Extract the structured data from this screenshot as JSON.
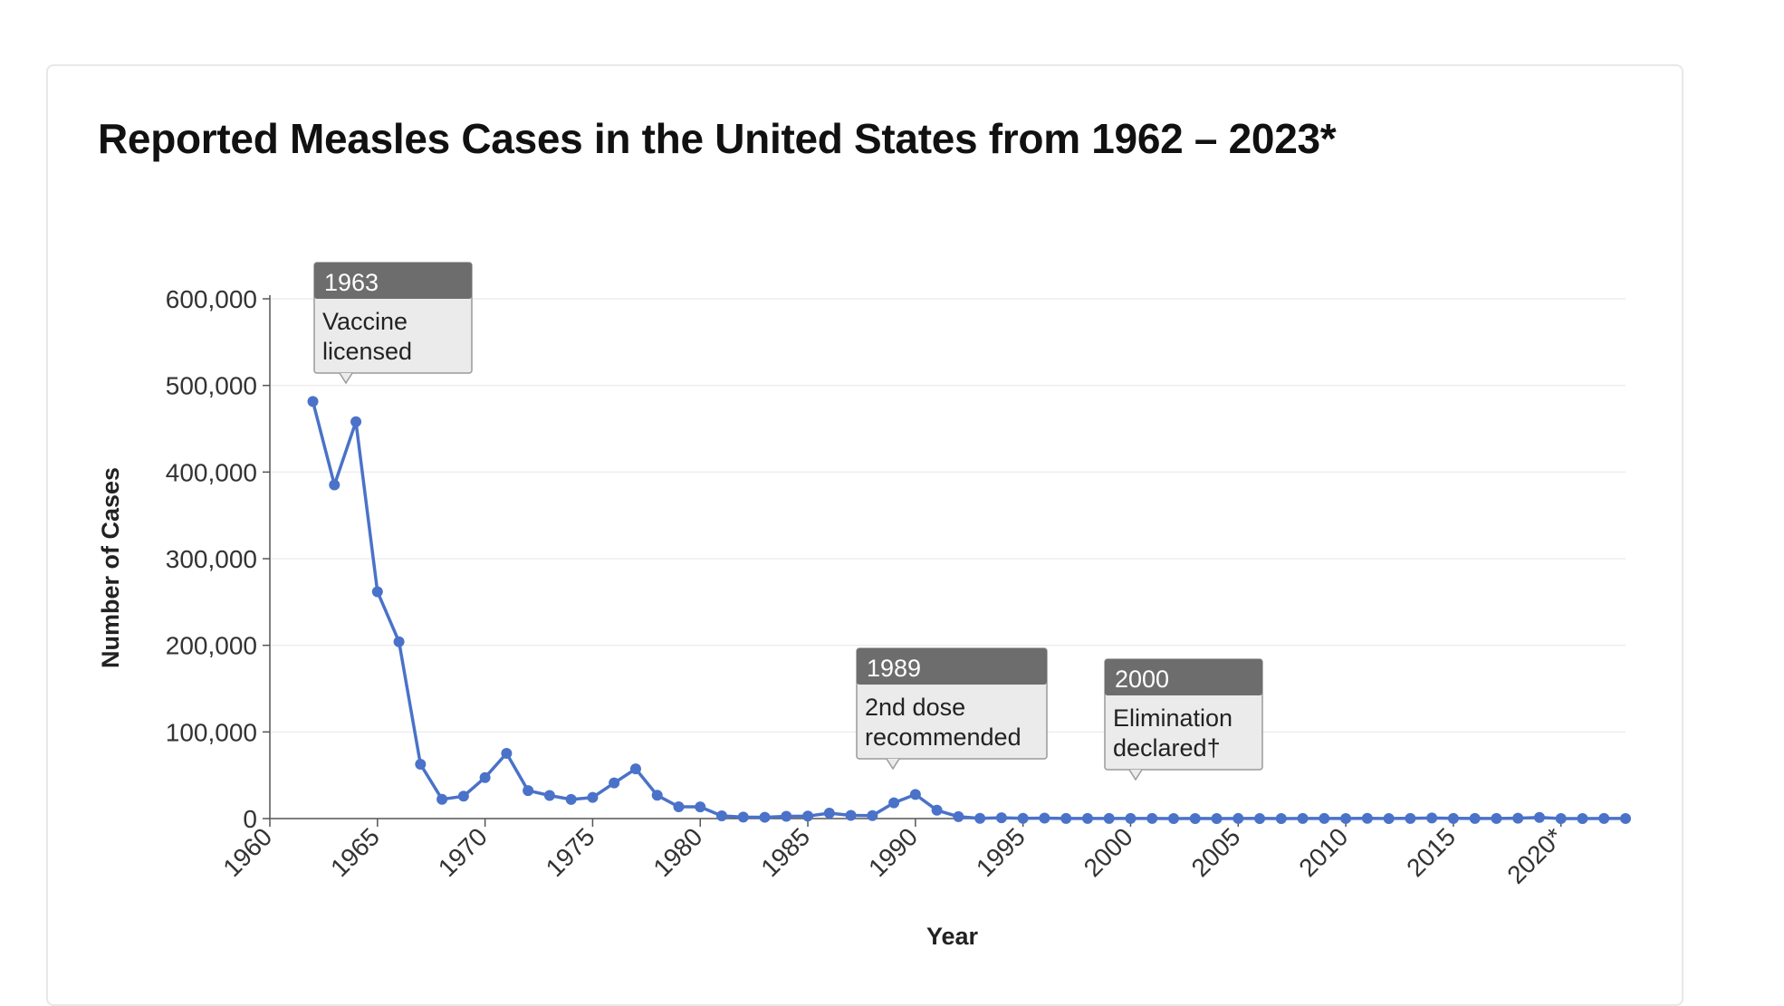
{
  "card": {
    "title": "Reported Measles Cases in the United States from 1962 – 2023*"
  },
  "colors": {
    "line": "#4a72c9",
    "point": "#4a72c9",
    "grid": "#eeeeee",
    "axis": "#555555",
    "annotation_header": "#6d6d6d",
    "annotation_body": "#ebebeb"
  },
  "chart_data": {
    "type": "line",
    "xlabel": "Year",
    "ylabel": "Number of Cases",
    "xlim": [
      1960,
      2023
    ],
    "ylim": [
      0,
      600000
    ],
    "x_tick_values": [
      1960,
      1965,
      1970,
      1975,
      1980,
      1985,
      1990,
      1995,
      2000,
      2005,
      2010,
      2015,
      2020
    ],
    "x_tick_labels": [
      "1960",
      "1965",
      "1970",
      "1975",
      "1980",
      "1985",
      "1990",
      "1995",
      "2000",
      "2005",
      "2010",
      "2015",
      "2020*"
    ],
    "y_tick_values": [
      0,
      100000,
      200000,
      300000,
      400000,
      500000,
      600000
    ],
    "y_tick_labels": [
      "0",
      "100,000",
      "200,000",
      "300,000",
      "400,000",
      "500,000",
      "600,000"
    ],
    "grid": true,
    "series": [
      {
        "x": [
          1962,
          1963,
          1964,
          1965,
          1966,
          1967,
          1968,
          1969,
          1970,
          1971,
          1972,
          1973,
          1974,
          1975,
          1976,
          1977,
          1978,
          1979,
          1980,
          1981,
          1982,
          1983,
          1984,
          1985,
          1986,
          1987,
          1988,
          1989,
          1990,
          1991,
          1992,
          1993,
          1994,
          1995,
          1996,
          1997,
          1998,
          1999,
          2000,
          2001,
          2002,
          2003,
          2004,
          2005,
          2006,
          2007,
          2008,
          2009,
          2010,
          2011,
          2012,
          2013,
          2014,
          2015,
          2016,
          2017,
          2018,
          2019,
          2020,
          2021,
          2022,
          2023
        ],
        "values": [
          481530,
          385156,
          458083,
          261904,
          204136,
          62705,
          22231,
          25826,
          47351,
          75290,
          32275,
          26690,
          22094,
          24374,
          41126,
          57345,
          26871,
          13597,
          13506,
          3124,
          1714,
          1497,
          2587,
          2822,
          6282,
          3655,
          3396,
          18193,
          27786,
          9643,
          2237,
          312,
          963,
          309,
          508,
          138,
          100,
          100,
          86,
          116,
          44,
          56,
          37,
          66,
          55,
          43,
          140,
          71,
          63,
          220,
          55,
          187,
          667,
          188,
          86,
          120,
          375,
          1274,
          13,
          49,
          121,
          59
        ]
      }
    ],
    "annotations": [
      {
        "year": 1963,
        "header": "1963",
        "line1": "Vaccine",
        "line2": "licensed"
      },
      {
        "year": 1989,
        "header": "1989",
        "line1": "2nd dose",
        "line2": "recommended"
      },
      {
        "year": 2000,
        "header": "2000",
        "line1": "Elimination",
        "line2": "declared†"
      }
    ]
  }
}
